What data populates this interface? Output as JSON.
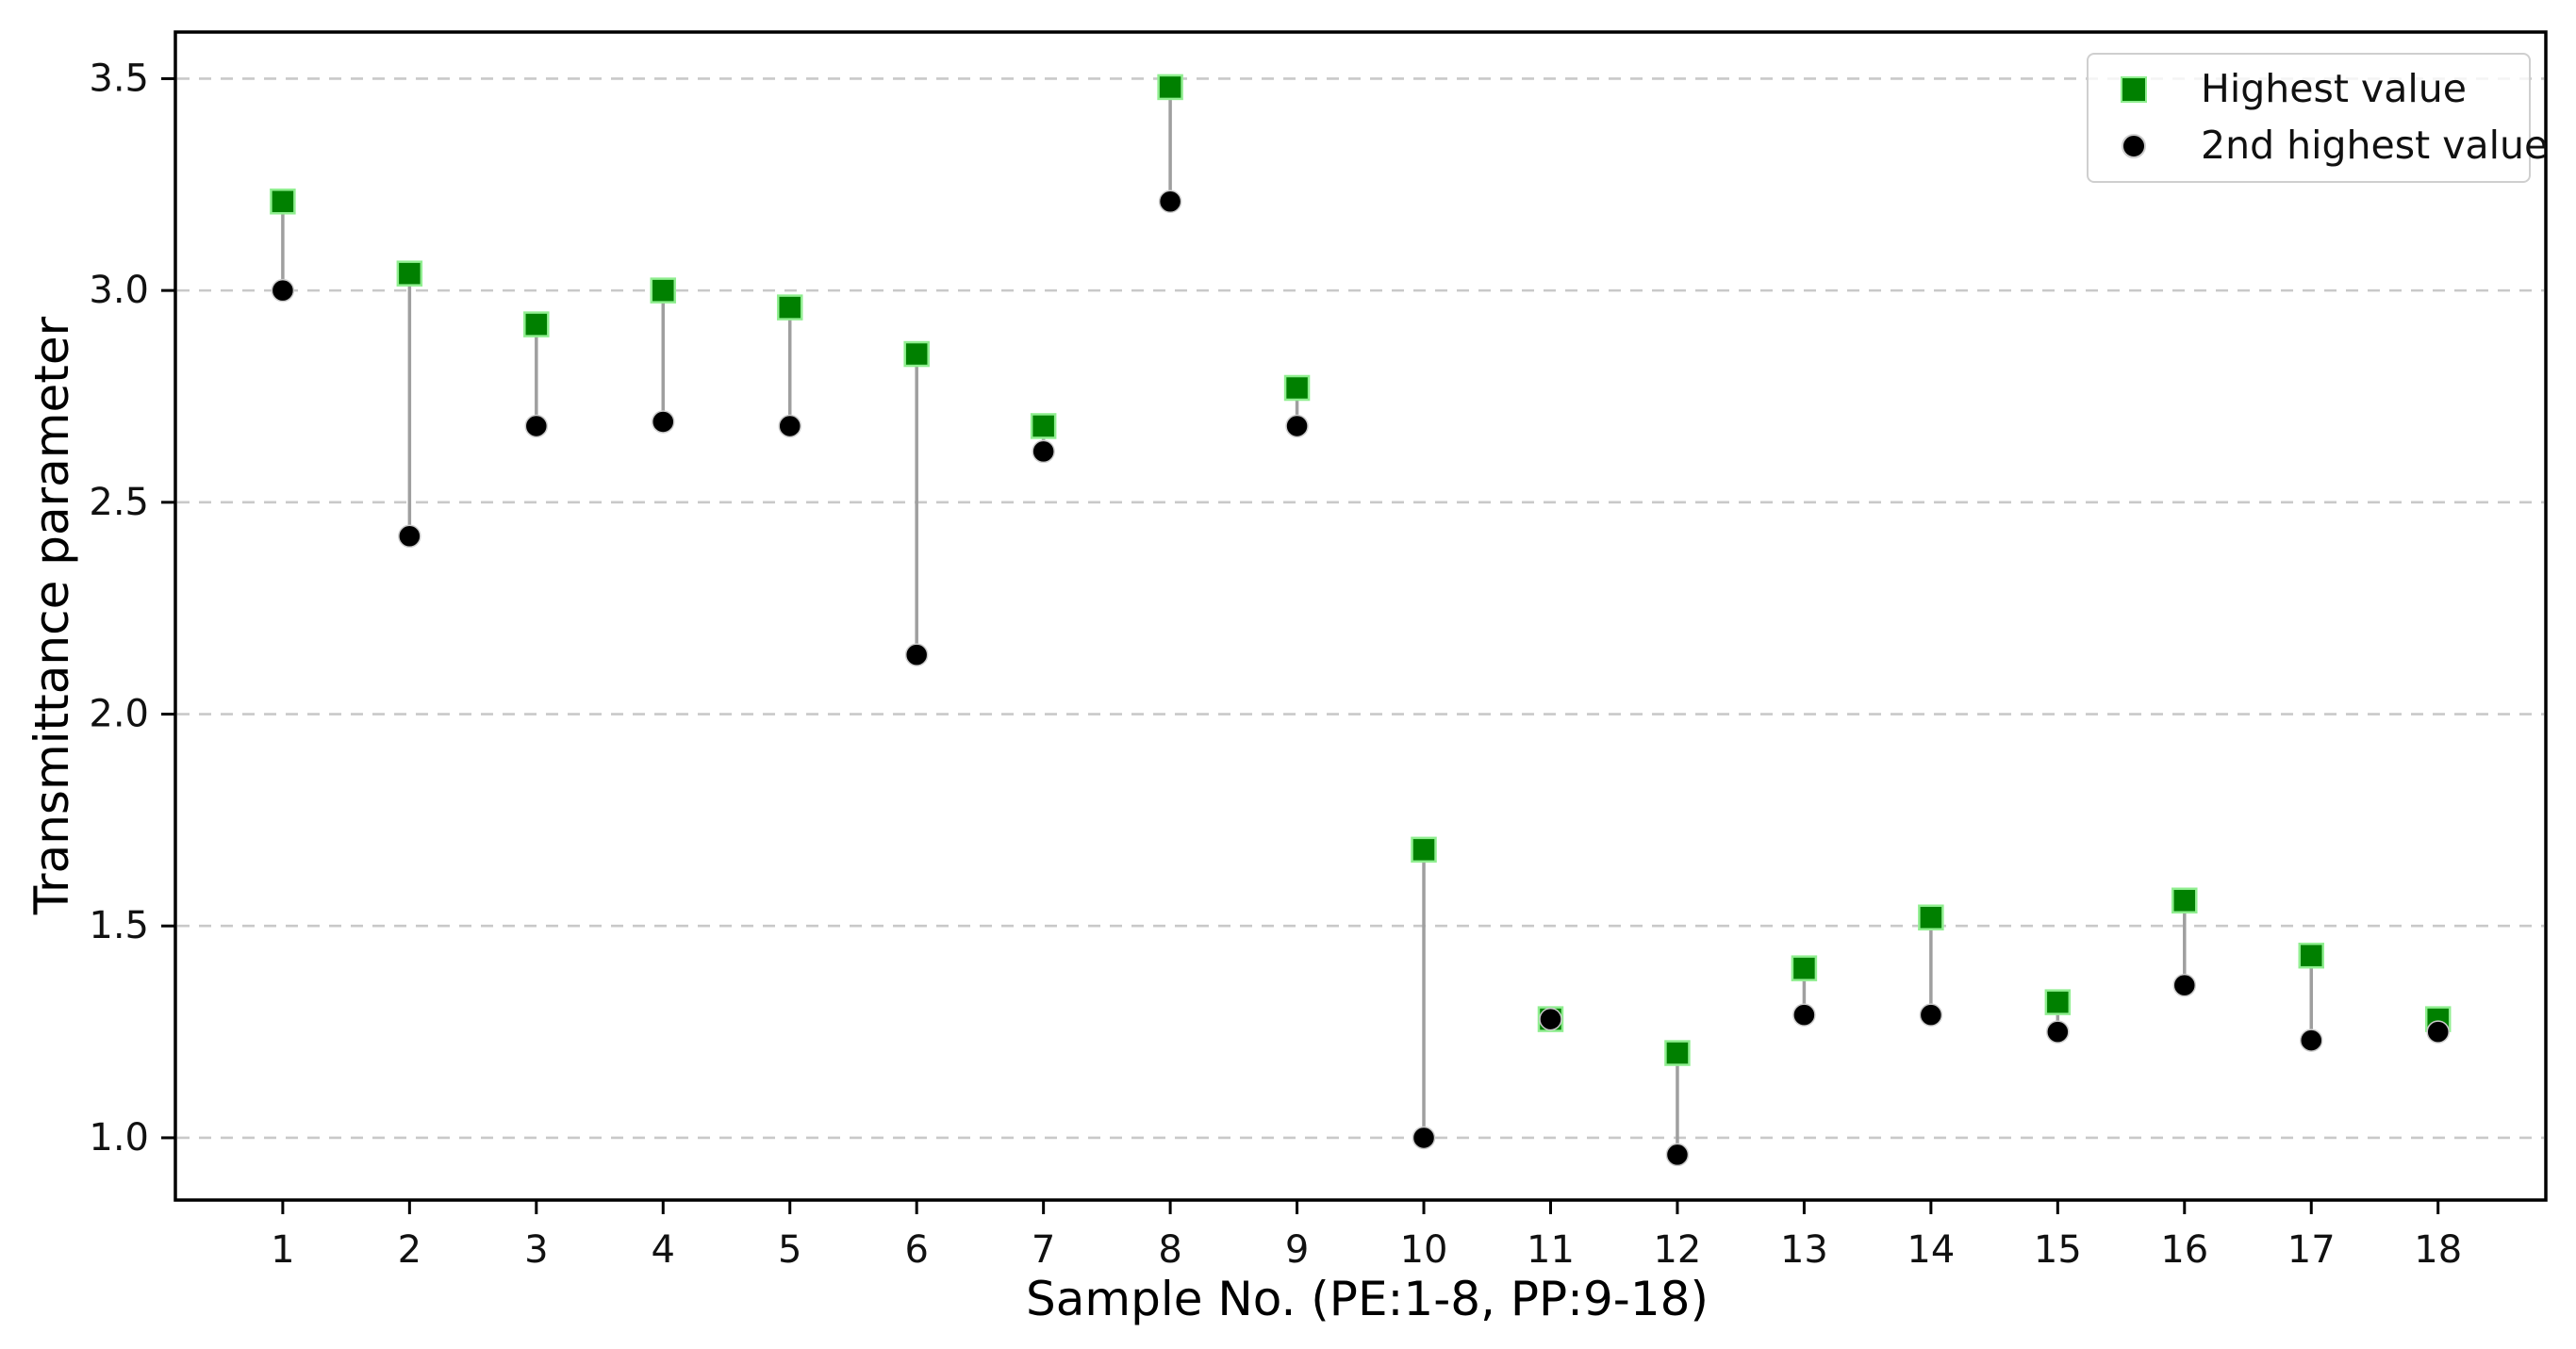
{
  "chart_data": {
    "type": "scatter",
    "subtype": "dumbbell",
    "title": "",
    "xlabel": "Sample No. (PE:1-8, PP:9-18)",
    "ylabel": "Transmittance parameter",
    "categories": [
      "1",
      "2",
      "3",
      "4",
      "5",
      "6",
      "7",
      "8",
      "9",
      "10",
      "11",
      "12",
      "13",
      "14",
      "15",
      "16",
      "17",
      "18"
    ],
    "x": [
      1,
      2,
      3,
      4,
      5,
      6,
      7,
      8,
      9,
      10,
      11,
      12,
      13,
      14,
      15,
      16,
      17,
      18
    ],
    "series": [
      {
        "name": "Highest value",
        "marker": "square",
        "color": "#008000",
        "edge_color": "#90ee90",
        "values": [
          3.21,
          3.04,
          2.92,
          3.0,
          2.96,
          2.85,
          2.68,
          3.48,
          2.77,
          1.68,
          1.28,
          1.2,
          1.4,
          1.52,
          1.32,
          1.56,
          1.43,
          1.28
        ]
      },
      {
        "name": "2nd highest value",
        "marker": "circle",
        "color": "#000000",
        "edge_color": "#cccccc",
        "values": [
          3.0,
          2.42,
          2.68,
          2.69,
          2.68,
          2.14,
          2.62,
          3.21,
          2.68,
          1.0,
          1.28,
          0.96,
          1.29,
          1.29,
          1.25,
          1.36,
          1.23,
          1.25
        ]
      }
    ],
    "connector_color": "#9f9f9f",
    "grid": {
      "axis": "y",
      "style": "dashed",
      "color": "#c9c9c9"
    },
    "xlim": [
      0.153,
      18.85
    ],
    "ylim": [
      0.853,
      3.61
    ],
    "yticks": [
      1.0,
      1.5,
      2.0,
      2.5,
      3.0,
      3.5
    ],
    "ytick_labels": [
      "1.0",
      "1.5",
      "2.0",
      "2.5",
      "3.0",
      "3.5"
    ],
    "legend": {
      "position": "upper right"
    }
  }
}
